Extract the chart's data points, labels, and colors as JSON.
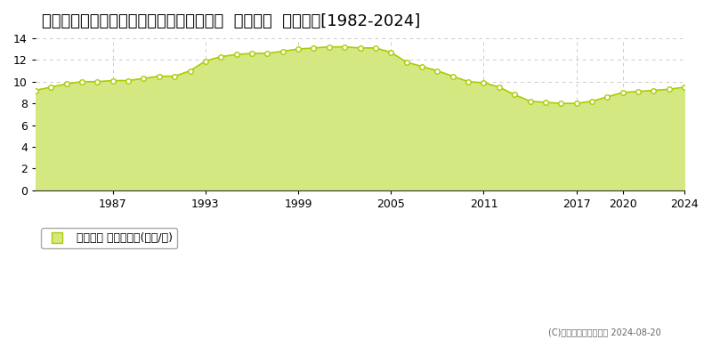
{
  "title": "鳥取県西伯郡日吉津村大字日吉津８９８番  地価公示  地価推移[1982-2024]",
  "years": [
    1982,
    1983,
    1984,
    1985,
    1986,
    1987,
    1988,
    1989,
    1990,
    1991,
    1992,
    1993,
    1994,
    1995,
    1996,
    1997,
    1998,
    1999,
    2000,
    2001,
    2002,
    2003,
    2004,
    2005,
    2006,
    2007,
    2008,
    2009,
    2010,
    2011,
    2012,
    2013,
    2014,
    2015,
    2016,
    2017,
    2018,
    2019,
    2020,
    2021,
    2022,
    2023,
    2024
  ],
  "values": [
    9.2,
    9.5,
    9.8,
    10.0,
    10.0,
    10.1,
    10.1,
    10.3,
    10.5,
    10.5,
    11.0,
    11.9,
    12.3,
    12.5,
    12.6,
    12.6,
    12.8,
    13.0,
    13.1,
    13.2,
    13.2,
    13.1,
    13.1,
    12.7,
    11.8,
    11.4,
    11.0,
    10.5,
    10.0,
    9.9,
    9.5,
    8.8,
    8.2,
    8.1,
    8.0,
    8.0,
    8.2,
    8.6,
    9.0,
    9.1,
    9.2,
    9.3,
    9.5
  ],
  "line_color": "#aacc00",
  "fill_color": "#d4e882",
  "marker_color": "#ffffff",
  "marker_edge_color": "#aacc00",
  "background_color": "#ffffff",
  "plot_bg_color": "#ffffff",
  "grid_color": "#cccccc",
  "yticks": [
    0,
    2,
    4,
    6,
    8,
    10,
    12,
    14
  ],
  "xtick_positions": [
    1987,
    1993,
    1999,
    2005,
    2011,
    2017,
    2020,
    2024
  ],
  "xtick_labels": [
    "1987",
    "1993",
    "1999",
    "2005",
    "2011",
    "2017",
    "2020",
    "2024"
  ],
  "ylim": [
    0,
    14
  ],
  "xlim": [
    1982,
    2024
  ],
  "legend_label": "地価公示 平均坪単価(万円/坪)",
  "copyright": "(C)土地価格ドットコム 2024-08-20",
  "title_fontsize": 13,
  "axis_fontsize": 9,
  "legend_fontsize": 9
}
